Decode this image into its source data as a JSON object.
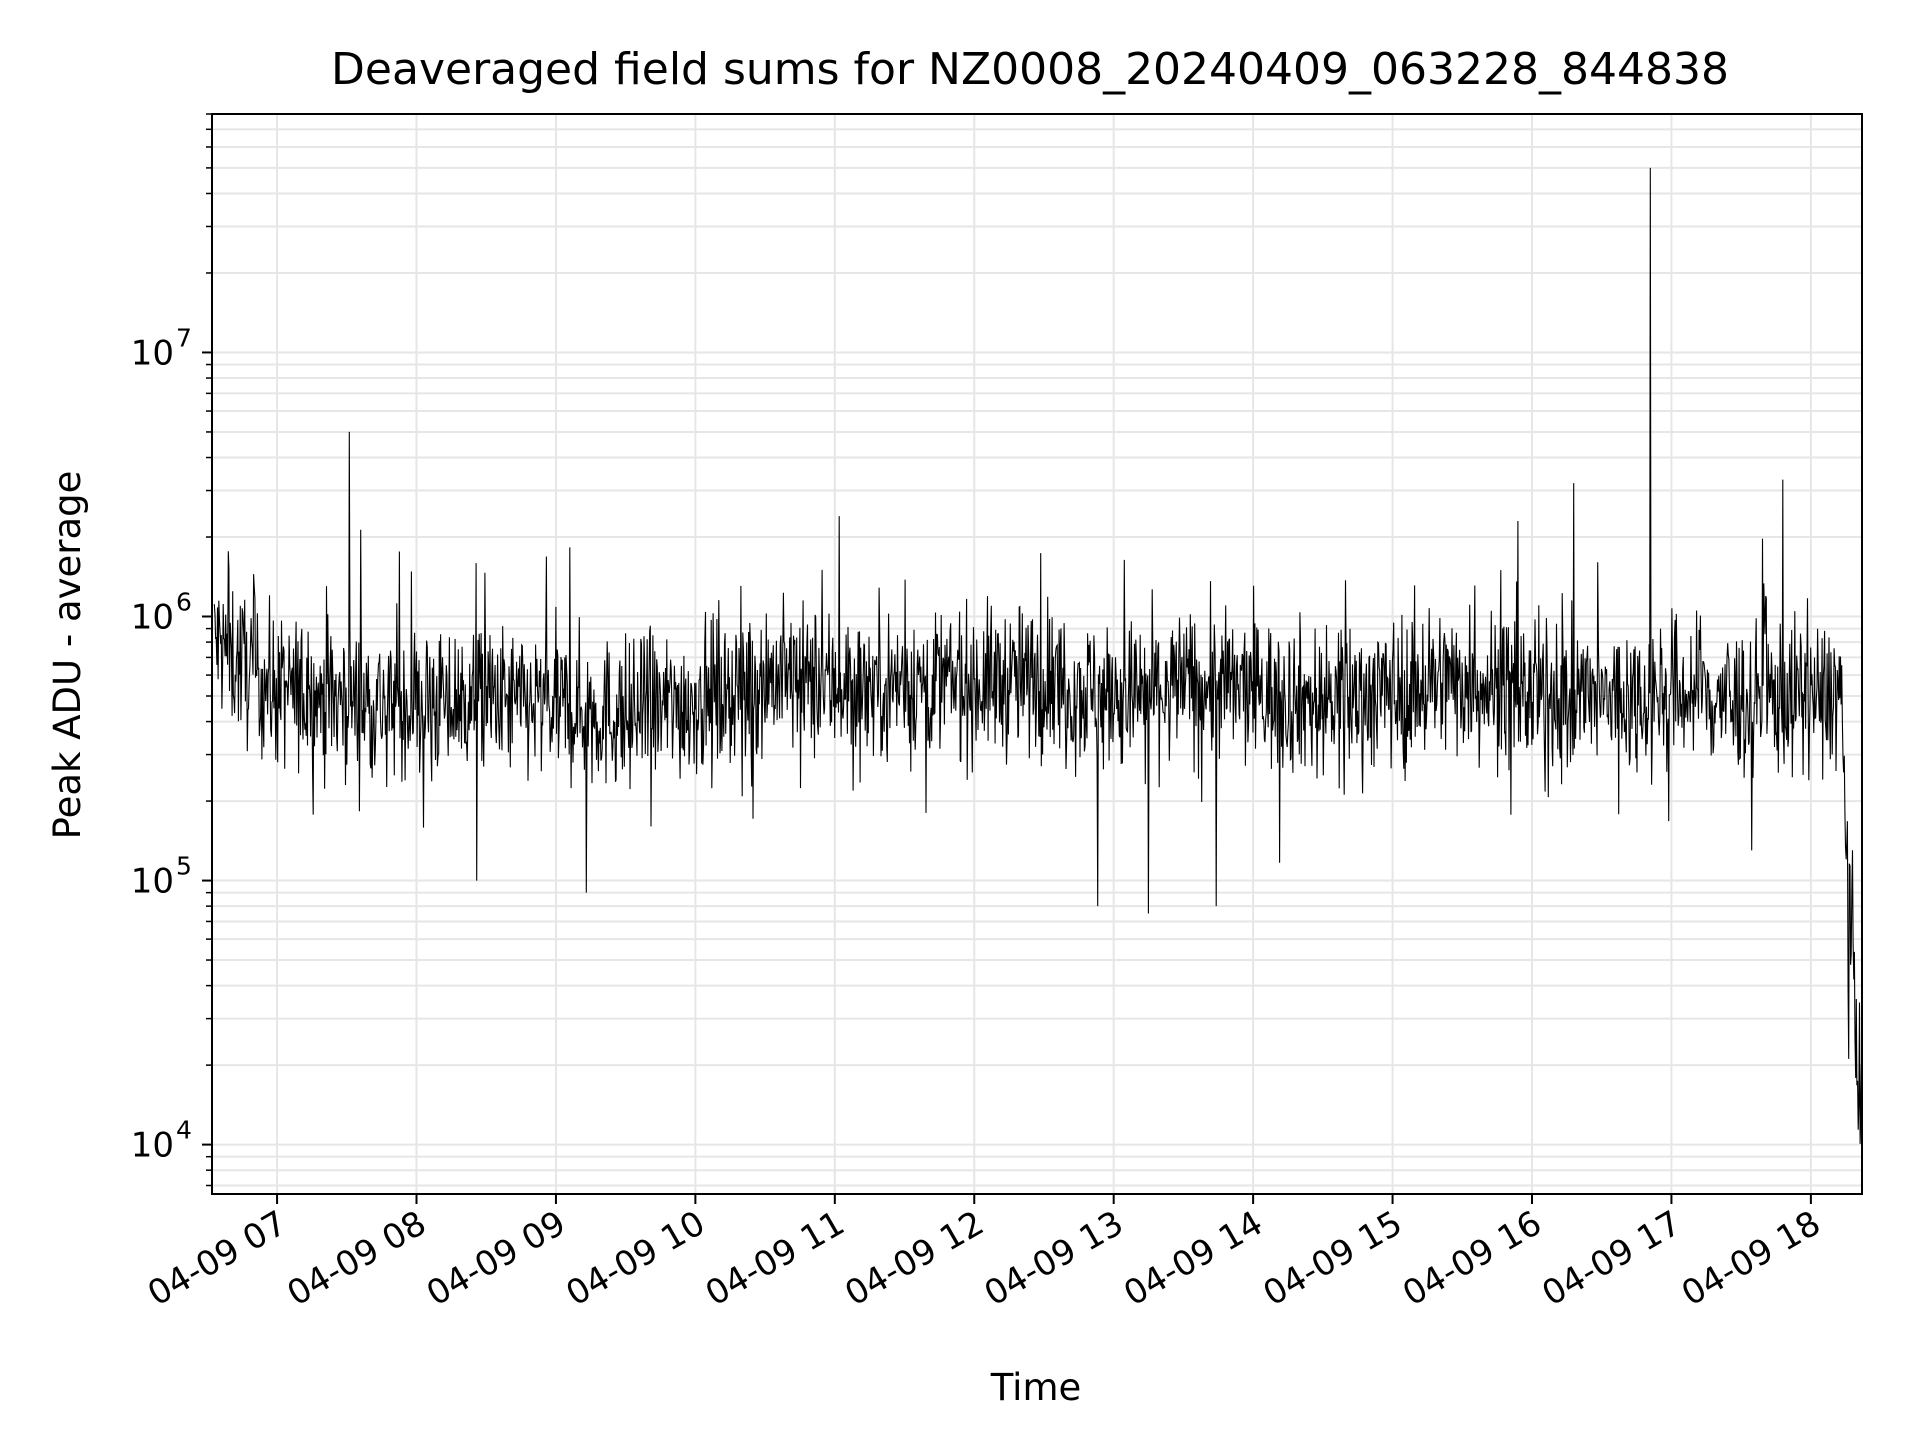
{
  "chart_data": {
    "type": "line",
    "title": "Deaveraged field sums for NZ0008_20240409_063228_844838",
    "xlabel": "Time",
    "ylabel": "Peak ADU - average",
    "yscale": "log",
    "ylim": [
      6500,
      80000000
    ],
    "xlim": [
      "2024-04-09 06:32",
      "2024-04-09 18:22"
    ],
    "grid": true,
    "line_color": "#000000",
    "x_ticks": [
      "04-09 07",
      "04-09 08",
      "04-09 09",
      "04-09 10",
      "04-09 11",
      "04-09 12",
      "04-09 13",
      "04-09 14",
      "04-09 15",
      "04-09 16",
      "04-09 17",
      "04-09 18"
    ],
    "y_ticks": [
      {
        "value": 10000,
        "base": "10",
        "exp": "4"
      },
      {
        "value": 100000,
        "base": "10",
        "exp": "5"
      },
      {
        "value": 1000000,
        "base": "10",
        "exp": "6"
      },
      {
        "value": 10000000,
        "base": "10",
        "exp": "7"
      }
    ],
    "series": [
      {
        "baseline": [
          [
            "2024-04-09 06:33",
            800000
          ],
          [
            "2024-04-09 07:00",
            520000
          ],
          [
            "2024-04-09 07:30",
            480000
          ],
          [
            "2024-04-09 08:00",
            470000
          ],
          [
            "2024-04-09 08:30",
            480000
          ],
          [
            "2024-04-09 09:00",
            450000
          ],
          [
            "2024-04-09 09:30",
            420000
          ],
          [
            "2024-04-09 10:00",
            480000
          ],
          [
            "2024-04-09 10:30",
            600000
          ],
          [
            "2024-04-09 11:00",
            540000
          ],
          [
            "2024-04-09 11:30",
            560000
          ],
          [
            "2024-04-09 12:00",
            560000
          ],
          [
            "2024-04-09 12:30",
            580000
          ],
          [
            "2024-04-09 13:00",
            480000
          ],
          [
            "2024-04-09 13:30",
            560000
          ],
          [
            "2024-04-09 14:00",
            520000
          ],
          [
            "2024-04-09 14:30",
            480000
          ],
          [
            "2024-04-09 15:00",
            520000
          ],
          [
            "2024-04-09 15:30",
            580000
          ],
          [
            "2024-04-09 16:00",
            500000
          ],
          [
            "2024-04-09 16:30",
            480000
          ],
          [
            "2024-04-09 17:00",
            520000
          ],
          [
            "2024-04-09 17:30",
            480000
          ],
          [
            "2024-04-09 18:00",
            500000
          ],
          [
            "2024-04-09 18:13",
            520000
          ],
          [
            "2024-04-09 18:15",
            160000
          ],
          [
            "2024-04-09 18:17",
            70000
          ],
          [
            "2024-04-09 18:19",
            35000
          ],
          [
            "2024-04-09 18:21",
            16000
          ],
          [
            "2024-04-09 18:22",
            12000
          ]
        ],
        "peaks": [
          [
            "2024-04-09 07:31",
            5000000
          ],
          [
            "2024-04-09 11:02",
            2400000
          ],
          [
            "2024-04-09 15:54",
            2300000
          ],
          [
            "2024-04-09 16:51",
            50000000
          ],
          [
            "2024-04-09 17:48",
            3300000
          ]
        ],
        "dips": [
          [
            "2024-04-09 08:26",
            100000
          ],
          [
            "2024-04-09 09:13",
            90000
          ],
          [
            "2024-04-09 12:53",
            80000
          ],
          [
            "2024-04-09 13:15",
            75000
          ],
          [
            "2024-04-09 13:44",
            80000
          ]
        ]
      }
    ]
  }
}
